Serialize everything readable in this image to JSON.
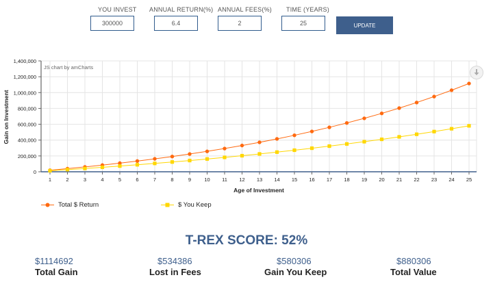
{
  "inputs": [
    {
      "label": "YOU INVEST",
      "value": "300000"
    },
    {
      "label": "ANNUAL RETURN(%)",
      "value": "6.4"
    },
    {
      "label": "ANNUAL FEES(%)",
      "value": "2"
    },
    {
      "label": "TIME (YEARS)",
      "value": "25"
    }
  ],
  "update_label": "UPDATE",
  "credit": "JS chart by amCharts",
  "chart_data": {
    "type": "line",
    "xlabel": "Age of Investment",
    "ylabel": "Gain on Investment",
    "ylim": [
      0,
      1400000
    ],
    "ytick_labels": [
      "0",
      "200,000",
      "400,000",
      "600,000",
      "800,000",
      "1,000,000",
      "1,200,000",
      "1,400,000"
    ],
    "x": [
      1,
      2,
      3,
      4,
      5,
      6,
      7,
      8,
      9,
      10,
      11,
      12,
      13,
      14,
      15,
      16,
      17,
      18,
      19,
      20,
      21,
      22,
      23,
      24,
      25
    ],
    "grid": true,
    "legend_position": "bottom",
    "series": [
      {
        "name": "Total $ Return",
        "color": "#ff6a10",
        "values": [
          19200,
          39629,
          61365,
          84492,
          109099,
          135281,
          163139,
          192780,
          224318,
          257874,
          293578,
          331567,
          371987,
          414994,
          460754,
          509443,
          561248,
          616368,
          675016,
          737417,
          803812,
          874456,
          949621,
          1029597,
          1114692
        ]
      },
      {
        "name": "$ You Keep",
        "color": "#ffd700",
        "values": [
          13200,
          26981,
          41368,
          56388,
          72069,
          88440,
          105531,
          123375,
          142003,
          161451,
          181755,
          202952,
          225082,
          248186,
          272306,
          297488,
          323777,
          351224,
          379878,
          409793,
          441024,
          473629,
          507669,
          543206,
          580306
        ]
      }
    ]
  },
  "score": "T-REX SCORE: 52%",
  "stats": [
    {
      "value": "$1114692",
      "label": "Total Gain"
    },
    {
      "value": "$534386",
      "label": "Lost in Fees"
    },
    {
      "value": "$580306",
      "label": "Gain You Keep"
    },
    {
      "value": "$880306",
      "label": "Total Value"
    }
  ]
}
